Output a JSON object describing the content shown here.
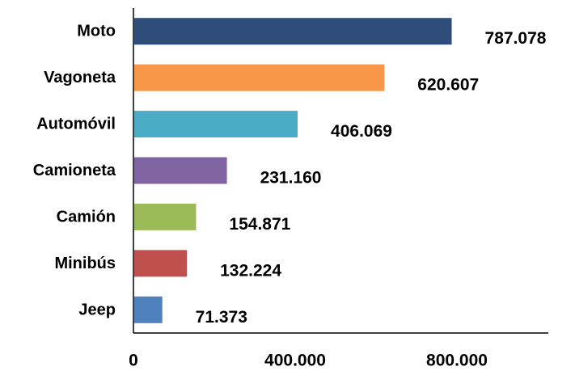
{
  "chart_data": {
    "type": "bar",
    "orientation": "horizontal",
    "categories": [
      "Moto",
      "Vagoneta",
      "Automóvil",
      "Camioneta",
      "Camión",
      "Minibús",
      "Jeep"
    ],
    "values": [
      787078,
      620607,
      406069,
      231160,
      154871,
      132224,
      71373
    ],
    "value_labels": [
      "787.078",
      "620.607",
      "406.069",
      "231.160",
      "154.871",
      "132.224",
      "71.373"
    ],
    "colors": [
      "#2E4E79",
      "#F79646",
      "#4BACC6",
      "#8064A2",
      "#9BBB59",
      "#C0504D",
      "#4F81BD"
    ],
    "x_ticks": [
      0,
      400000,
      800000
    ],
    "x_tick_labels": [
      "0",
      "400.000",
      "800.000"
    ],
    "xlim": [
      0,
      1000000
    ],
    "grid": false,
    "legend": "none"
  }
}
